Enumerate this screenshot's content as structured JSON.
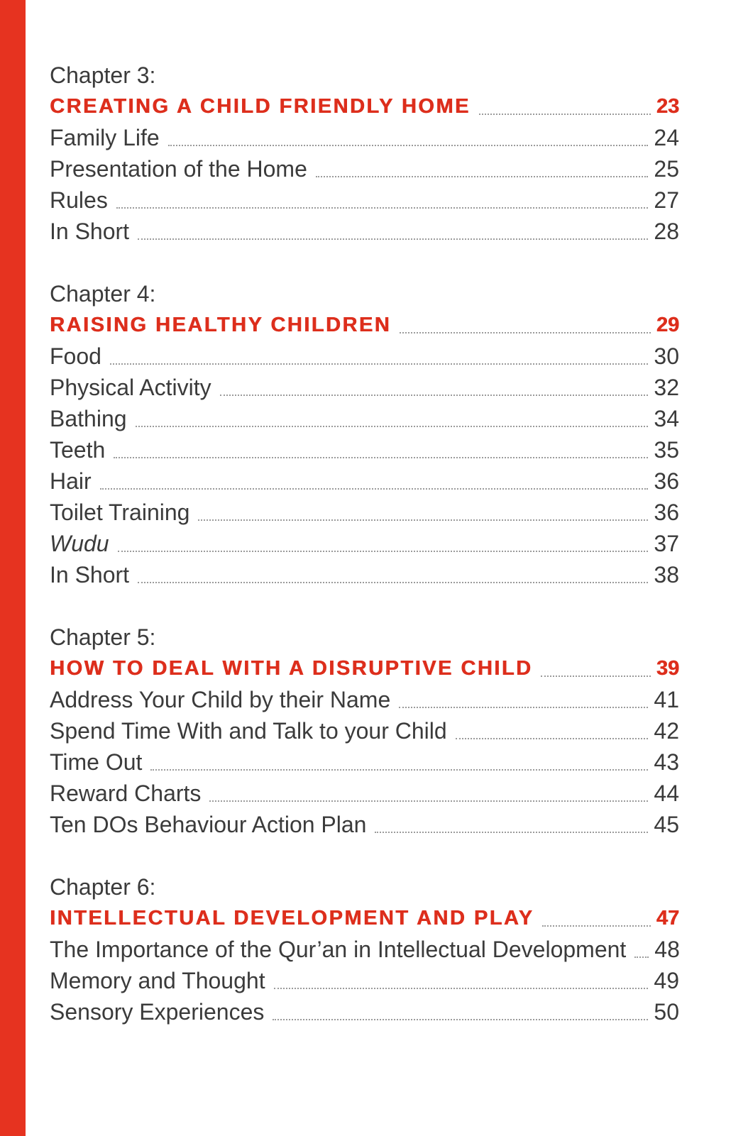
{
  "page": {
    "accent_red": "#dd2e1c",
    "text_color": "#3b3b3b",
    "edge_bar_color": "#e63320"
  },
  "toc": {
    "sections": [
      {
        "chapter_label": "Chapter 3:",
        "title": "CREATING A CHILD FRIENDLY HOME",
        "page": "23",
        "entries": [
          {
            "label": "Family Life",
            "page": "24"
          },
          {
            "label": "Presentation of the Home",
            "page": "25"
          },
          {
            "label": "Rules",
            "page": "27"
          },
          {
            "label": "In Short",
            "page": "28"
          }
        ]
      },
      {
        "chapter_label": "Chapter 4:",
        "title": "RAISING HEALTHY CHILDREN",
        "page": "29",
        "entries": [
          {
            "label": "Food",
            "page": "30"
          },
          {
            "label": "Physical Activity",
            "page": "32"
          },
          {
            "label": "Bathing",
            "page": "34"
          },
          {
            "label": "Teeth",
            "page": "35"
          },
          {
            "label": "Hair",
            "page": "36"
          },
          {
            "label": "Toilet Training",
            "page": "36"
          },
          {
            "label": "Wudu",
            "page": "37"
          },
          {
            "label": "In Short",
            "page": "38"
          }
        ]
      },
      {
        "chapter_label": "Chapter 5:",
        "title": "HOW TO DEAL WITH A DISRUPTIVE CHILD",
        "page": "39",
        "entries": [
          {
            "label": "Address Your Child by their Name",
            "page": "41"
          },
          {
            "label": "Spend Time With and Talk to your Child",
            "page": "42"
          },
          {
            "label": "Time Out",
            "page": "43"
          },
          {
            "label": "Reward Charts",
            "page": "44"
          },
          {
            "label": "Ten DOs Behaviour Action Plan",
            "page": "45"
          }
        ]
      },
      {
        "chapter_label": "Chapter 6:",
        "title": "INTELLECTUAL DEVELOPMENT AND PLAY",
        "page": "47",
        "entries": [
          {
            "label": "The Importance of the Qur’an in Intellectual Development",
            "page": "48"
          },
          {
            "label": "Memory and Thought",
            "page": "49"
          },
          {
            "label": "Sensory Experiences",
            "page": "50"
          }
        ]
      }
    ]
  }
}
